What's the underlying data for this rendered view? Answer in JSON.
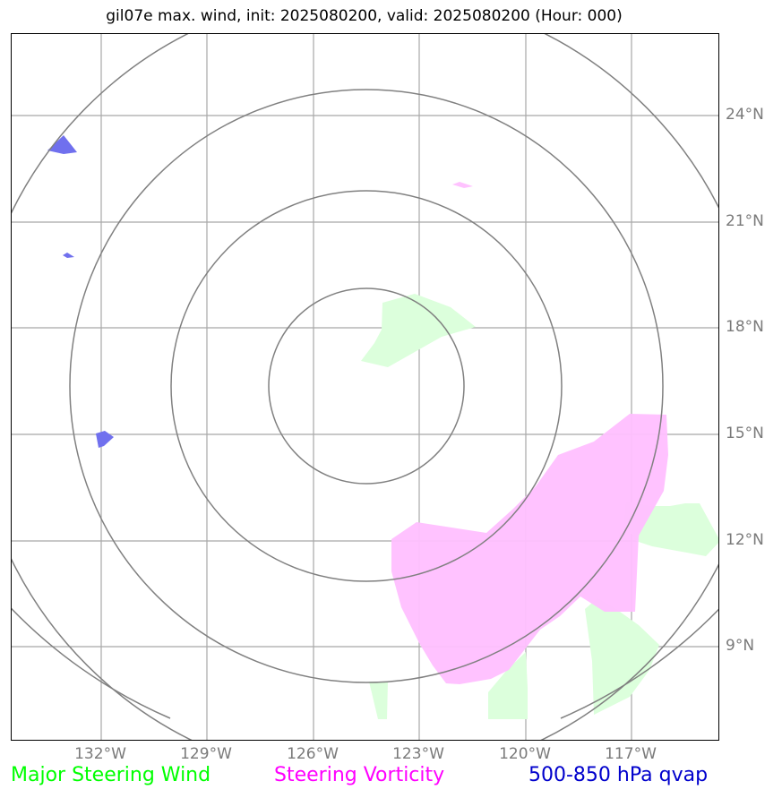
{
  "title": "gil07e max. wind, init: 2025080200, valid: 2025080200 (Hour: 000)",
  "lat_labels": [
    "24°N",
    "21°N",
    "18°N",
    "15°N",
    "12°N",
    "9°N"
  ],
  "lon_labels": [
    "132°W",
    "129°W",
    "126°W",
    "123°W",
    "120°W",
    "117°W"
  ],
  "legend": [
    {
      "label": "Major Steering Wind",
      "color": "#00ff00"
    },
    {
      "label": "Steering Vorticity",
      "color": "#ff00ff"
    },
    {
      "label": "500-850 hPa qvap",
      "color": "#0000cc"
    }
  ],
  "colors": {
    "grid": "#a8a8a8",
    "range_rings": "#808080",
    "steering_wind_fill": "#dcffdc",
    "vorticity_fill": "#ffbfff",
    "qvap_fill": "#7070ee"
  }
}
